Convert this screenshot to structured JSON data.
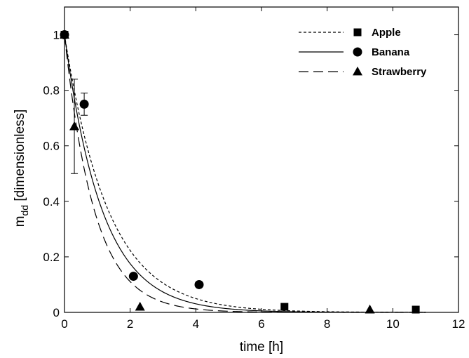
{
  "chart_data": {
    "type": "scatter",
    "title": "",
    "xlabel": "time [h]",
    "ylabel_main": "m",
    "ylabel_sub": "dd",
    "ylabel_rest": " [dimensionless]",
    "xlim": [
      0,
      12
    ],
    "ylim": [
      0,
      1.1
    ],
    "xticks": [
      0,
      2,
      4,
      6,
      8,
      10,
      12
    ],
    "xtick_labels": [
      "0",
      "2",
      "4",
      "6",
      "8",
      "10",
      "12"
    ],
    "yticks": [
      0,
      0.2,
      0.4,
      0.6,
      0.8,
      1
    ],
    "ytick_labels": [
      "0",
      "0.2",
      "0.4",
      "0.6",
      "0.8",
      "1"
    ],
    "grid": false,
    "legend_position": "top-right",
    "series": [
      {
        "name": "Apple",
        "marker": "square",
        "line_style": "short-dash",
        "points": [
          {
            "x": 0,
            "y": 1.0
          },
          {
            "x": 6.7,
            "y": 0.02
          },
          {
            "x": 10.7,
            "y": 0.01
          }
        ],
        "fit_decay_rate": 0.75
      },
      {
        "name": "Banana",
        "marker": "circle",
        "line_style": "solid",
        "points": [
          {
            "x": 0,
            "y": 1.0
          },
          {
            "x": 0.6,
            "y": 0.75,
            "err": 0.04
          },
          {
            "x": 2.1,
            "y": 0.13
          },
          {
            "x": 4.1,
            "y": 0.1
          }
        ],
        "fit_decay_rate": 0.87
      },
      {
        "name": "Strawberry",
        "marker": "triangle",
        "line_style": "long-dash",
        "points": [
          {
            "x": 0,
            "y": 1.0
          },
          {
            "x": 0.3,
            "y": 0.67,
            "err": 0.17
          },
          {
            "x": 2.3,
            "y": 0.02
          },
          {
            "x": 9.3,
            "y": 0.01
          }
        ],
        "fit_decay_rate": 1.1
      }
    ]
  }
}
